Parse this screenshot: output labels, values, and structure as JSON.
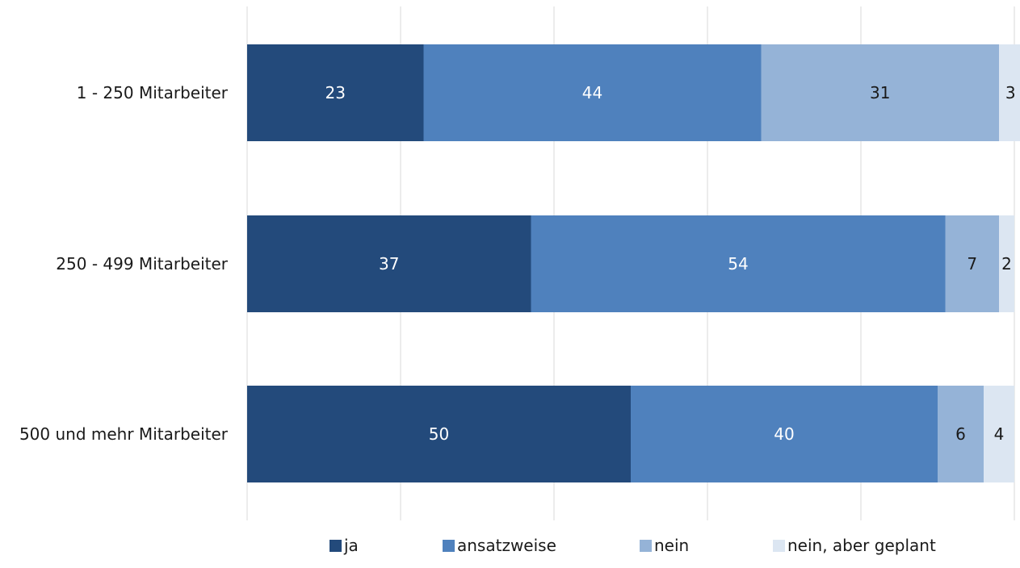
{
  "chart_data": {
    "type": "bar",
    "orientation": "horizontal",
    "stacked": true,
    "categories": [
      "1 - 250 Mitarbeiter",
      "250 - 499 Mitarbeiter",
      "500 und mehr Mitarbeiter"
    ],
    "series": [
      {
        "name": "ja",
        "values": [
          23,
          37,
          50
        ],
        "color": "#234a7b"
      },
      {
        "name": "ansatzweise",
        "values": [
          44,
          54,
          40
        ],
        "color": "#4f81bd"
      },
      {
        "name": "nein",
        "values": [
          31,
          7,
          6
        ],
        "color": "#95b3d7"
      },
      {
        "name": "nein, aber geplant",
        "values": [
          3,
          2,
          4
        ],
        "color": "#dce6f2"
      }
    ],
    "xlim": [
      0,
      100
    ],
    "grid": true,
    "legend_position": "bottom",
    "title": "",
    "xlabel": "",
    "ylabel": ""
  }
}
